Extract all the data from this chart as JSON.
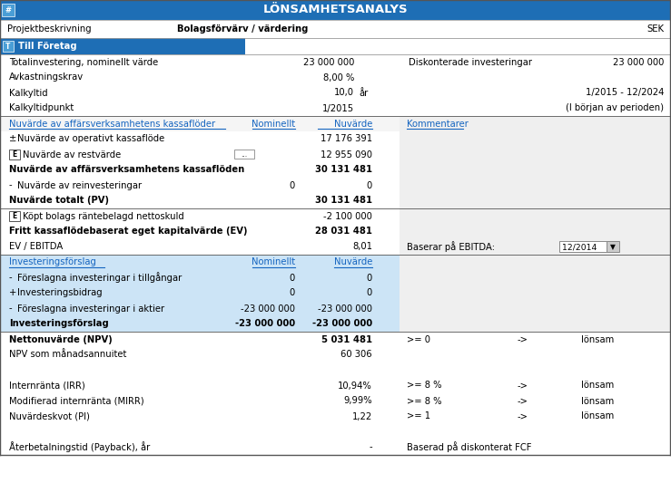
{
  "title": "LÖNSAMHETSANALYS",
  "title_bg": "#1e6eb5",
  "title_fg": "#ffffff",
  "header_row": {
    "col1": "Projektbeskrivning",
    "col2": "Bolagsförvärv / värdering",
    "col3": "SEK"
  },
  "section_header": {
    "text": "Till Företag",
    "bg": "#1e6eb5",
    "fg": "#ffffff"
  },
  "top_section": [
    {
      "label": "Totalinvestering, nominellt värde",
      "value": "23 000 000",
      "right_label": "Diskonterade investeringar",
      "right_value": "23 000 000"
    },
    {
      "label": "Avkastningskrav",
      "value": "8,00 %",
      "right_label": "",
      "right_value": ""
    },
    {
      "label": "Kalkyltid",
      "value": "10,0",
      "unit": "år",
      "right_label": "",
      "right_value": "1/2015 - 12/2024"
    },
    {
      "label": "Kalkyltidpunkt",
      "value": "1/2015",
      "unit": "",
      "right_label": "",
      "right_value": "(I början av perioden)"
    }
  ],
  "mid_section_header": {
    "col1": "Nuvärde av affärsverksamhetens kassaflöder",
    "col2": "Nominellt",
    "col3": "Nuvärde",
    "col4": "Kommentarer"
  },
  "mid_rows": [
    {
      "prefix": "±",
      "label": "Nuvärde av operativt kassaflöde",
      "nominal": "",
      "nuvarde": "17 176 391",
      "bold": false,
      "has_e": false,
      "has_dots": false
    },
    {
      "prefix": "",
      "label": "Nuvärde av restvärde",
      "nominal": "",
      "nuvarde": "12 955 090",
      "bold": false,
      "has_e": true,
      "has_dots": true
    },
    {
      "prefix": "",
      "label": "Nuvärde av affärsverksamhetens kassaflöden",
      "nominal": "",
      "nuvarde": "30 131 481",
      "bold": true,
      "has_e": false,
      "has_dots": false
    },
    {
      "prefix": "-",
      "label": "Nuvärde av reinvesteringar",
      "nominal": "0",
      "nuvarde": "0",
      "bold": false,
      "has_e": false,
      "has_dots": false
    },
    {
      "prefix": "",
      "label": "Nuvärde totalt (PV)",
      "nominal": "",
      "nuvarde": "30 131 481",
      "bold": true,
      "has_e": false,
      "has_dots": false
    }
  ],
  "pv_section": [
    {
      "prefix": "",
      "label": "Köpt bolags räntebelagd nettoskuld",
      "nominal": "",
      "nuvarde": "-2 100 000",
      "bold": false,
      "has_e": true,
      "right_label": "",
      "right_value": ""
    },
    {
      "prefix": "",
      "label": "Fritt kassaflödebaserat eget kapitalvärde (EV)",
      "nominal": "",
      "nuvarde": "28 031 481",
      "bold": true,
      "has_e": false,
      "right_label": "",
      "right_value": ""
    },
    {
      "prefix": "",
      "label": "EV / EBITDA",
      "nominal": "",
      "nuvarde": "8,01",
      "bold": false,
      "has_e": false,
      "right_label": "Baserar på EBITDA:",
      "right_value": "12/2014"
    }
  ],
  "inv_section_header": {
    "col1": "Investeringsförslag",
    "col2": "Nominellt",
    "col3": "Nuvärde",
    "bg": "#cce4f6"
  },
  "inv_rows": [
    {
      "prefix": "-",
      "label": "Föreslagna investeringar i tillgångar",
      "nominal": "0",
      "nuvarde": "0",
      "bold": false
    },
    {
      "prefix": "+",
      "label": "Investeringsbidrag",
      "nominal": "0",
      "nuvarde": "0",
      "bold": false
    },
    {
      "prefix": "-",
      "label": "Föreslagna investeringar i aktier",
      "nominal": "-23 000 000",
      "nuvarde": "-23 000 000",
      "bold": false
    },
    {
      "prefix": "",
      "label": "Investeringsförslag",
      "nominal": "-23 000 000",
      "nuvarde": "-23 000 000",
      "bold": true
    }
  ],
  "result_rows": [
    {
      "label": "Nettonuvärde (NPV)",
      "value": "5 031 481",
      "cond": ">= 0",
      "arrow": "->",
      "result": "lönsam",
      "bold": true,
      "blank": false
    },
    {
      "label": "NPV som månadsannuitet",
      "value": "60 306",
      "cond": "",
      "arrow": "",
      "result": "",
      "bold": false,
      "blank": false
    },
    {
      "label": "",
      "value": "",
      "cond": "",
      "arrow": "",
      "result": "",
      "bold": false,
      "blank": true
    },
    {
      "label": "Internränta (IRR)",
      "value": "10,94%",
      "cond": ">= 8 %",
      "arrow": "->",
      "result": "lönsam",
      "bold": false,
      "blank": false
    },
    {
      "label": "Modifierad internränta (MIRR)",
      "value": "9,99%",
      "cond": ">= 8 %",
      "arrow": "->",
      "result": "lönsam",
      "bold": false,
      "blank": false
    },
    {
      "label": "Nuvärdeskvot (PI)",
      "value": "1,22",
      "cond": ">= 1",
      "arrow": "->",
      "result": "lönsam",
      "bold": false,
      "blank": false
    },
    {
      "label": "",
      "value": "",
      "cond": "",
      "arrow": "",
      "result": "",
      "bold": false,
      "blank": true
    },
    {
      "label": "Återbetalningstid (Payback), år",
      "value": "-",
      "cond": "Baserad på diskonterat FCF",
      "arrow": "",
      "result": "",
      "bold": false,
      "blank": false
    }
  ],
  "colors": {
    "header_blue": "#1e6eb5",
    "light_blue": "#cce4f6",
    "white": "#ffffff",
    "light_gray": "#efefef",
    "border": "#999999",
    "border_dark": "#555555",
    "text_dark": "#000000",
    "text_blue_link": "#1565c0"
  },
  "font_size": 7.2,
  "figsize": [
    7.39,
    5.33
  ],
  "dpi": 100
}
